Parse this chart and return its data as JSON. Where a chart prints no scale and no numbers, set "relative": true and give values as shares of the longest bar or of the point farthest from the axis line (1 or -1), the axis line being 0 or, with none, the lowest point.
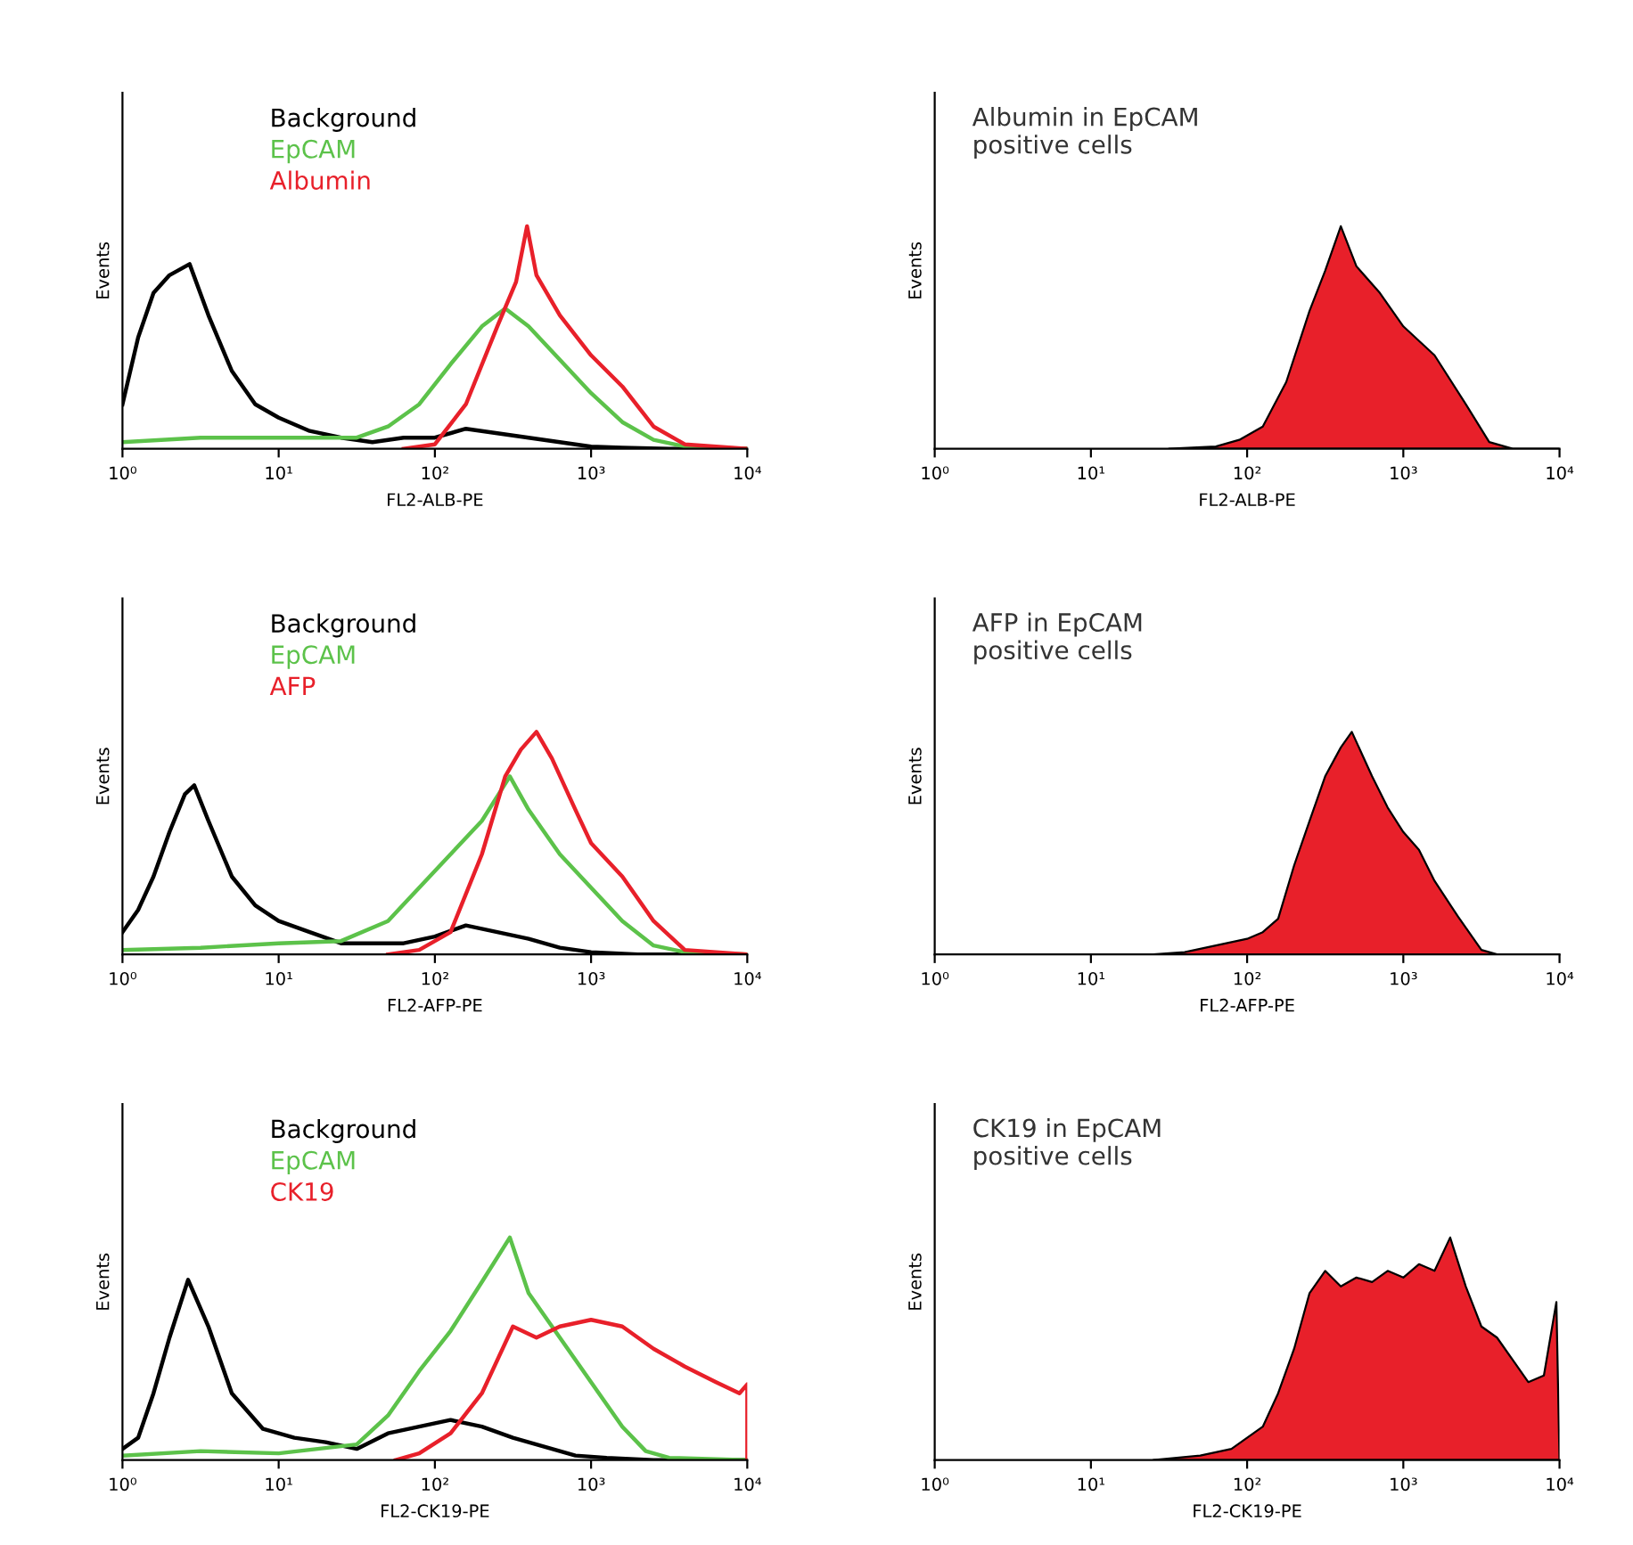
{
  "chart_data": [
    {
      "type": "line",
      "relative": true,
      "log": "x",
      "legend": "top left",
      "xlabel": "FL2-ALB-PE",
      "ylabel": "Events",
      "xlim": [
        1,
        10000
      ],
      "xticks": [
        {
          "value": 1,
          "label": "10⁰"
        },
        {
          "value": 10,
          "label": "10¹"
        },
        {
          "value": 100,
          "label": "10²"
        },
        {
          "value": 1000,
          "label": "10³"
        },
        {
          "value": 10000,
          "label": "10⁴"
        }
      ],
      "series": [
        {
          "name": "Background",
          "color": "#000000",
          "x": [
            1,
            1.26,
            1.58,
            2.0,
            2.69,
            3.55,
            5.01,
            7.08,
            10,
            15.8,
            25.1,
            39.8,
            63.1,
            100,
            158,
            251,
            398,
            631,
            1000,
            1585,
            3162,
            10000
          ],
          "values": [
            0.2,
            0.5,
            0.7,
            0.78,
            0.83,
            0.6,
            0.35,
            0.2,
            0.14,
            0.08,
            0.05,
            0.03,
            0.05,
            0.05,
            0.09,
            0.07,
            0.05,
            0.03,
            0.01,
            0.005,
            0,
            0
          ]
        },
        {
          "name": "EpCAM",
          "color": "#5cc24a",
          "x": [
            1,
            3.16,
            10,
            31.6,
            50.1,
            79.4,
            126,
            200,
            282,
            398,
            631,
            1000,
            1585,
            2512,
            3981,
            10000
          ],
          "values": [
            0.03,
            0.05,
            0.05,
            0.05,
            0.1,
            0.2,
            0.38,
            0.55,
            0.63,
            0.55,
            0.4,
            0.25,
            0.12,
            0.04,
            0.01,
            0
          ]
        },
        {
          "name": "Albumin",
          "color": "#e8202a",
          "x": [
            63.1,
            100,
            158,
            251,
            331,
            389,
            447,
            631,
            1000,
            1585,
            2512,
            3981,
            10000
          ],
          "values": [
            0,
            0.02,
            0.2,
            0.55,
            0.75,
            1.0,
            0.78,
            0.6,
            0.42,
            0.28,
            0.1,
            0.02,
            0
          ]
        }
      ]
    },
    {
      "type": "area",
      "relative": true,
      "log": "x",
      "title": "Albumin in EpCAM\npositive cells",
      "xlabel": "FL2-ALB-PE",
      "ylabel": "Events",
      "xlim": [
        1,
        10000
      ],
      "xticks": [
        {
          "value": 1,
          "label": "10⁰"
        },
        {
          "value": 10,
          "label": "10¹"
        },
        {
          "value": 100,
          "label": "10²"
        },
        {
          "value": 1000,
          "label": "10³"
        },
        {
          "value": 10000,
          "label": "10⁴"
        }
      ],
      "series": [
        {
          "color": "#e8202a",
          "x": [
            31.6,
            63.1,
            89.1,
            126,
            178,
            251,
            316,
            398,
            501,
            708,
            1000,
            1585,
            2512,
            3548,
            5012,
            10000
          ],
          "values": [
            0,
            0.01,
            0.04,
            0.1,
            0.3,
            0.62,
            0.8,
            1.0,
            0.82,
            0.7,
            0.55,
            0.42,
            0.2,
            0.03,
            0,
            0
          ]
        }
      ]
    },
    {
      "type": "line",
      "relative": true,
      "log": "x",
      "legend": "top left",
      "xlabel": "FL2-AFP-PE",
      "ylabel": "Events",
      "xlim": [
        1,
        10000
      ],
      "xticks": [
        {
          "value": 1,
          "label": "10⁰"
        },
        {
          "value": 10,
          "label": "10¹"
        },
        {
          "value": 100,
          "label": "10²"
        },
        {
          "value": 1000,
          "label": "10³"
        },
        {
          "value": 10000,
          "label": "10⁴"
        }
      ],
      "series": [
        {
          "name": "Background",
          "color": "#000000",
          "x": [
            1,
            1.26,
            1.58,
            2.0,
            2.51,
            2.88,
            3.55,
            5.01,
            7.08,
            10,
            15.8,
            25.1,
            39.8,
            63.1,
            100,
            158,
            251,
            398,
            631,
            1000,
            1995,
            10000
          ],
          "values": [
            0.1,
            0.2,
            0.35,
            0.55,
            0.72,
            0.76,
            0.6,
            0.35,
            0.22,
            0.15,
            0.1,
            0.05,
            0.05,
            0.05,
            0.08,
            0.13,
            0.1,
            0.07,
            0.03,
            0.01,
            0,
            0
          ]
        },
        {
          "name": "EpCAM",
          "color": "#5cc24a",
          "x": [
            1,
            3.16,
            10,
            25.1,
            50.1,
            79.4,
            126,
            200,
            302,
            398,
            631,
            1000,
            1585,
            2512,
            3981,
            10000
          ],
          "values": [
            0.02,
            0.03,
            0.05,
            0.06,
            0.15,
            0.3,
            0.45,
            0.6,
            0.8,
            0.65,
            0.45,
            0.3,
            0.15,
            0.04,
            0.01,
            0
          ]
        },
        {
          "name": "AFP",
          "color": "#e8202a",
          "x": [
            50.1,
            79.4,
            126,
            200,
            282,
            355,
            447,
            562,
            794,
            1000,
            1585,
            2512,
            3981,
            10000
          ],
          "values": [
            0,
            0.02,
            0.1,
            0.45,
            0.8,
            0.92,
            1.0,
            0.88,
            0.65,
            0.5,
            0.35,
            0.15,
            0.02,
            0
          ]
        }
      ]
    },
    {
      "type": "area",
      "relative": true,
      "log": "x",
      "title": "AFP in EpCAM\npositive cells",
      "xlabel": "FL2-AFP-PE",
      "ylabel": "Events",
      "xlim": [
        1,
        10000
      ],
      "xticks": [
        {
          "value": 1,
          "label": "10⁰"
        },
        {
          "value": 10,
          "label": "10¹"
        },
        {
          "value": 100,
          "label": "10²"
        },
        {
          "value": 1000,
          "label": "10³"
        },
        {
          "value": 10000,
          "label": "10⁴"
        }
      ],
      "series": [
        {
          "color": "#e8202a",
          "x": [
            25.1,
            39.8,
            63.1,
            100,
            126,
            158,
            200,
            251,
            316,
            398,
            468,
            631,
            794,
            1000,
            1259,
            1585,
            2239,
            3162,
            3981,
            10000
          ],
          "values": [
            0,
            0.01,
            0.04,
            0.07,
            0.1,
            0.16,
            0.4,
            0.6,
            0.8,
            0.93,
            1.0,
            0.8,
            0.66,
            0.55,
            0.47,
            0.33,
            0.17,
            0.02,
            0,
            0
          ]
        }
      ]
    },
    {
      "type": "line",
      "relative": true,
      "log": "x",
      "legend": "top left",
      "xlabel": "FL2-CK19-PE",
      "ylabel": "Events",
      "xlim": [
        1,
        10000
      ],
      "xticks": [
        {
          "value": 1,
          "label": "10⁰"
        },
        {
          "value": 10,
          "label": "10¹"
        },
        {
          "value": 100,
          "label": "10²"
        },
        {
          "value": 1000,
          "label": "10³"
        },
        {
          "value": 10000,
          "label": "10⁴"
        }
      ],
      "series": [
        {
          "name": "Background",
          "color": "#000000",
          "x": [
            1,
            1.26,
            1.58,
            2.0,
            2.63,
            3.55,
            5.01,
            7.94,
            12.6,
            20,
            31.6,
            50.1,
            79.4,
            126,
            200,
            316,
            501,
            794,
            1259,
            2512,
            10000
          ],
          "values": [
            0.05,
            0.1,
            0.3,
            0.55,
            0.81,
            0.6,
            0.3,
            0.14,
            0.1,
            0.08,
            0.05,
            0.12,
            0.15,
            0.18,
            0.15,
            0.1,
            0.06,
            0.02,
            0.01,
            0,
            0
          ]
        },
        {
          "name": "EpCAM",
          "color": "#5cc24a",
          "x": [
            1,
            3.16,
            10,
            31.6,
            50.1,
            79.4,
            126,
            200,
            302,
            398,
            631,
            1000,
            1585,
            2239,
            3162,
            10000
          ],
          "values": [
            0.02,
            0.04,
            0.03,
            0.07,
            0.2,
            0.4,
            0.58,
            0.8,
            1.0,
            0.75,
            0.55,
            0.35,
            0.15,
            0.04,
            0.01,
            0
          ]
        },
        {
          "name": "CK19",
          "color": "#e8202a",
          "x": [
            56.2,
            79.4,
            126,
            200,
            316,
            447,
            631,
            1000,
            1585,
            2512,
            3981,
            6310,
            8913,
            10000,
            10000
          ],
          "values": [
            0,
            0.03,
            0.12,
            0.3,
            0.6,
            0.55,
            0.6,
            0.63,
            0.6,
            0.5,
            0.42,
            0.35,
            0.3,
            0.34,
            0
          ]
        }
      ]
    },
    {
      "type": "area",
      "relative": true,
      "log": "x",
      "title": "CK19 in EpCAM\npositive cells",
      "xlabel": "FL2-CK19-PE",
      "ylabel": "Events",
      "xlim": [
        1,
        10000
      ],
      "xticks": [
        {
          "value": 1,
          "label": "10⁰"
        },
        {
          "value": 10,
          "label": "10¹"
        },
        {
          "value": 100,
          "label": "10²"
        },
        {
          "value": 1000,
          "label": "10³"
        },
        {
          "value": 10000,
          "label": "10⁴"
        }
      ],
      "series": [
        {
          "color": "#e8202a",
          "x": [
            25.1,
            50.1,
            79.4,
            126,
            158,
            200,
            251,
            316,
            398,
            501,
            631,
            794,
            1000,
            1259,
            1585,
            1995,
            2512,
            3162,
            3981,
            5012,
            6310,
            7943,
            9550,
            10000
          ],
          "values": [
            0,
            0.02,
            0.05,
            0.15,
            0.3,
            0.5,
            0.75,
            0.85,
            0.78,
            0.82,
            0.8,
            0.85,
            0.82,
            0.88,
            0.85,
            1.0,
            0.78,
            0.6,
            0.55,
            0.45,
            0.35,
            0.38,
            0.71,
            0
          ]
        }
      ]
    }
  ]
}
